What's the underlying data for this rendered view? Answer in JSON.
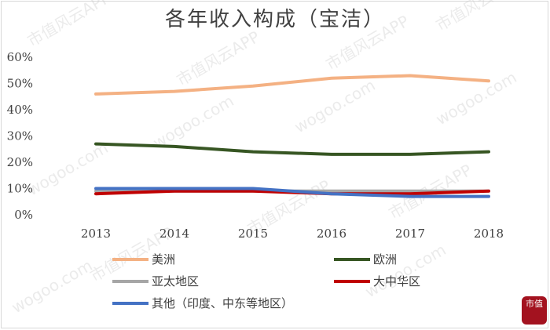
{
  "chart_data": {
    "type": "line",
    "title": "各年收入构成（宝洁）",
    "categories": [
      "2013",
      "2014",
      "2015",
      "2016",
      "2017",
      "2018"
    ],
    "y_ticks": [
      "0%",
      "10%",
      "20%",
      "30%",
      "40%",
      "50%",
      "60%"
    ],
    "ylim": [
      0,
      60
    ],
    "grid": false,
    "legend_placement": "bottom",
    "series": [
      {
        "name": "美洲",
        "color": "#f4b183",
        "values": [
          46,
          47,
          49,
          52,
          53,
          51
        ]
      },
      {
        "name": "欧洲",
        "color": "#375623",
        "values": [
          27,
          26,
          24,
          23,
          23,
          24
        ]
      },
      {
        "name": "亚太地区",
        "color": "#a6a6a6",
        "values": [
          9,
          9,
          9,
          9,
          9,
          9
        ]
      },
      {
        "name": "大中华区",
        "color": "#c00000",
        "values": [
          8,
          9,
          9,
          8,
          8,
          9
        ]
      },
      {
        "name": "其他（印度、中东等地区）",
        "color": "#4472c4",
        "values": [
          10,
          10,
          10,
          8,
          7,
          7
        ]
      }
    ]
  },
  "watermark": {
    "text1": "市值风云APP",
    "text2": "wogoo.com"
  },
  "badge_text": "市值"
}
